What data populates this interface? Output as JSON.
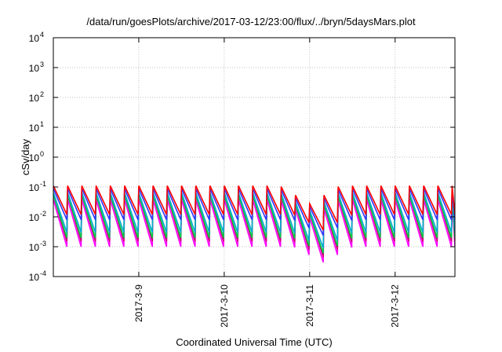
{
  "chart_data": {
    "type": "line",
    "title": "/data/run/goesPlots/archive/2017-03-12/23:00/flux/../bryn/5daysMars.plot",
    "xlabel": "Coordinated Universal Time (UTC)",
    "ylabel": "cSv/day",
    "y_scale": "log",
    "ylim": [
      0.0001,
      10000
    ],
    "y_ticks": [
      {
        "value": 0.0001,
        "base": "10",
        "exp": "-4"
      },
      {
        "value": 0.001,
        "base": "10",
        "exp": "-3"
      },
      {
        "value": 0.01,
        "base": "10",
        "exp": "-2"
      },
      {
        "value": 0.1,
        "base": "10",
        "exp": "-1"
      },
      {
        "value": 1,
        "base": "10",
        "exp": "0"
      },
      {
        "value": 10,
        "base": "10",
        "exp": "1"
      },
      {
        "value": 100,
        "base": "10",
        "exp": "2"
      },
      {
        "value": 1000,
        "base": "10",
        "exp": "3"
      },
      {
        "value": 10000,
        "base": "10",
        "exp": "4"
      }
    ],
    "x_range_days": [
      0,
      4.7
    ],
    "x_ticks": [
      {
        "day": 1,
        "label": "2017-3-9"
      },
      {
        "day": 2,
        "label": "2017-3-10"
      },
      {
        "day": 3,
        "label": "2017-3-11"
      },
      {
        "day": 4,
        "label": "2017-3-12"
      }
    ],
    "grid": true,
    "pattern": "sawtooth",
    "cycles_per_day": 6,
    "dip_day": 3.0,
    "series": [
      {
        "color": "#ff00ff",
        "peak": 0.035,
        "low": 0.001
      },
      {
        "color": "#cc0077",
        "peak": 0.05,
        "low": 0.0015
      },
      {
        "color": "#00cc44",
        "peak": 0.05,
        "low": 0.002
      },
      {
        "color": "#00aacc",
        "peak": 0.06,
        "low": 0.003
      },
      {
        "color": "#3333ff",
        "peak": 0.08,
        "low": 0.008
      },
      {
        "color": "#ff0000",
        "peak": 0.1,
        "low": 0.012
      }
    ]
  }
}
